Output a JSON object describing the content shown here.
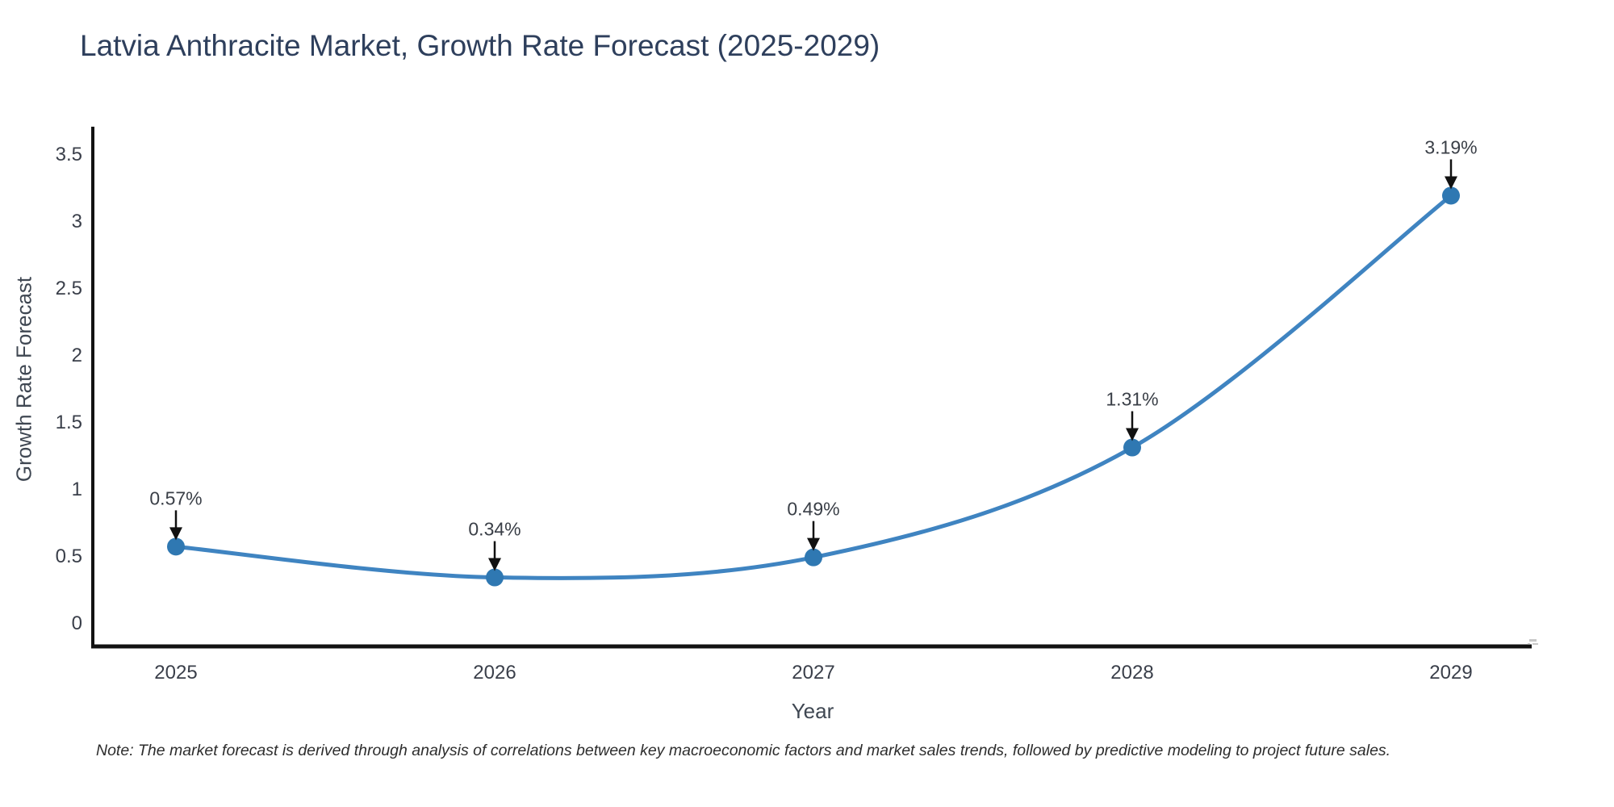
{
  "title": "Latvia Anthracite Market, Growth Rate Forecast (2025-2029)",
  "note": {
    "text": "Note: The market forecast is derived through analysis of correlations between key macroeconomic factors and market sales trends, followed by predictive modeling to project future sales."
  },
  "chart_data": {
    "type": "line",
    "title": "Latvia Anthracite Market, Growth Rate Forecast (2025-2029)",
    "xlabel": "Year",
    "ylabel": "Growth Rate Forecast",
    "categories": [
      "2025",
      "2026",
      "2027",
      "2028",
      "2029"
    ],
    "values": [
      0.57,
      0.34,
      0.49,
      1.31,
      3.19
    ],
    "point_labels": [
      "0.57%",
      "0.34%",
      "0.49%",
      "1.31%",
      "3.19%"
    ],
    "ytick_labels": [
      "0",
      "0.5",
      "1",
      "1.5",
      "2",
      "2.5",
      "3",
      "3.5"
    ],
    "yticks": [
      0,
      0.5,
      1,
      1.5,
      2,
      2.5,
      3,
      3.5
    ],
    "ylim": [
      -0.17,
      3.69
    ],
    "grid": false,
    "legend": "none",
    "line_style": "spline-smoothed with circle markers and downward annotation arrows",
    "axis_end_mark_icon": "illegible-micro-watermark",
    "colors": {
      "line": "#3f84c1",
      "marker": "#2f78b2",
      "axis": "#121212",
      "title_text": "#2e3f5c",
      "tick_text": "#3a3f4a",
      "axis_title_text": "#3f4752",
      "annotation_text": "#3a3f47",
      "arrow": "#111111",
      "note_text": "#2d2d2d",
      "background": "#ffffff"
    }
  }
}
